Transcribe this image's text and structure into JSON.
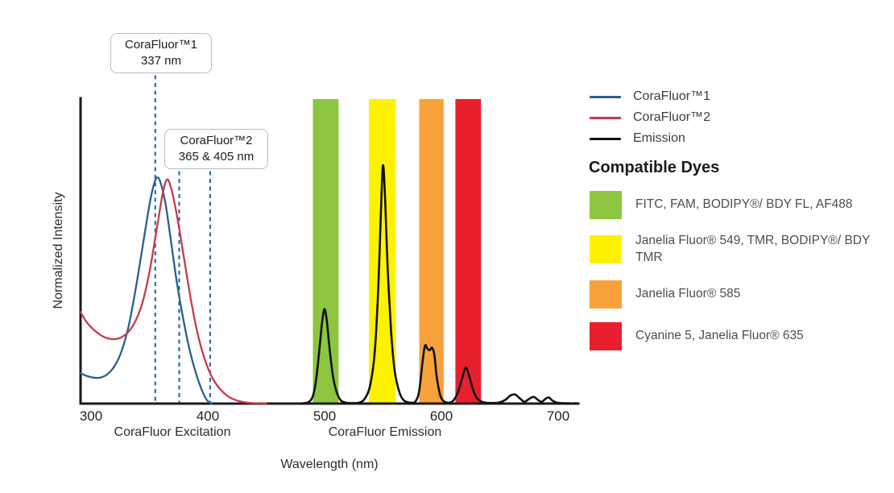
{
  "chart_data": {
    "type": "line",
    "title": "",
    "xlabel": "Wavelength (nm)",
    "ylabel": "Normalized Intensity",
    "xlim": [
      291,
      717
    ],
    "ylim": [
      0,
      1
    ],
    "grid": false,
    "x_ticks": [
      300,
      400,
      500,
      600,
      700
    ],
    "x_section_labels": [
      {
        "text": "CoraFluor Excitation",
        "center_nm": 370
      },
      {
        "text": "CoraFluor Emission",
        "center_nm": 552
      }
    ],
    "annotations": [
      {
        "title": "CoraFluor™1",
        "value": "337 nm",
        "lines_nm": [
          355
        ]
      },
      {
        "title": "CoraFluor™2",
        "value": "365 & 405 nm",
        "lines_nm": [
          375.5,
          402
        ]
      }
    ],
    "marker_color": "#2E6DA4",
    "axis_color": "#1a1a1a",
    "series": [
      {
        "name": "CoraFluor™1",
        "color": "#2B5F8D",
        "points": [
          [
            291,
            0.1
          ],
          [
            296,
            0.091
          ],
          [
            302,
            0.085
          ],
          [
            308,
            0.085
          ],
          [
            314,
            0.096
          ],
          [
            320,
            0.122
          ],
          [
            326,
            0.17
          ],
          [
            332,
            0.25
          ],
          [
            338,
            0.37
          ],
          [
            344,
            0.51
          ],
          [
            350,
            0.65
          ],
          [
            354,
            0.72
          ],
          [
            357,
            0.741
          ],
          [
            360,
            0.718
          ],
          [
            364,
            0.65
          ],
          [
            368,
            0.545
          ],
          [
            373,
            0.41
          ],
          [
            378,
            0.297
          ],
          [
            384,
            0.183
          ],
          [
            390,
            0.098
          ],
          [
            396,
            0.034
          ],
          [
            400,
            0.008
          ],
          [
            403,
            0.0
          ]
        ]
      },
      {
        "name": "CoraFluor™2",
        "color": "#C73A4D",
        "points": [
          [
            291,
            0.3
          ],
          [
            296,
            0.268
          ],
          [
            302,
            0.243
          ],
          [
            308,
            0.225
          ],
          [
            314,
            0.214
          ],
          [
            320,
            0.211
          ],
          [
            326,
            0.217
          ],
          [
            332,
            0.235
          ],
          [
            338,
            0.27
          ],
          [
            344,
            0.33
          ],
          [
            350,
            0.43
          ],
          [
            356,
            0.565
          ],
          [
            361,
            0.68
          ],
          [
            365,
            0.734
          ],
          [
            369,
            0.7
          ],
          [
            374,
            0.607
          ],
          [
            380,
            0.468
          ],
          [
            386,
            0.33
          ],
          [
            392,
            0.218
          ],
          [
            398,
            0.138
          ],
          [
            404,
            0.084
          ],
          [
            410,
            0.05
          ],
          [
            418,
            0.022
          ],
          [
            426,
            0.009
          ],
          [
            434,
            0.003
          ],
          [
            442,
            0.001
          ],
          [
            450,
            0.0
          ]
        ]
      },
      {
        "name": "Emission",
        "color": "#121212",
        "points": [
          [
            480,
            0.0
          ],
          [
            486,
            0.004
          ],
          [
            490,
            0.025
          ],
          [
            493,
            0.085
          ],
          [
            496,
            0.195
          ],
          [
            498,
            0.27
          ],
          [
            500,
            0.31
          ],
          [
            502,
            0.268
          ],
          [
            504,
            0.19
          ],
          [
            507,
            0.095
          ],
          [
            510,
            0.042
          ],
          [
            514,
            0.01
          ],
          [
            520,
            0.002
          ],
          [
            528,
            0.002
          ],
          [
            534,
            0.014
          ],
          [
            539,
            0.06
          ],
          [
            543,
            0.17
          ],
          [
            546,
            0.38
          ],
          [
            548,
            0.6
          ],
          [
            550,
            0.78
          ],
          [
            552,
            0.655
          ],
          [
            554,
            0.445
          ],
          [
            557,
            0.235
          ],
          [
            560,
            0.108
          ],
          [
            564,
            0.038
          ],
          [
            568,
            0.01
          ],
          [
            574,
            0.003
          ],
          [
            578,
            0.008
          ],
          [
            581,
            0.042
          ],
          [
            584,
            0.14
          ],
          [
            586,
            0.19
          ],
          [
            588,
            0.18
          ],
          [
            590,
            0.175
          ],
          [
            592,
            0.183
          ],
          [
            594,
            0.16
          ],
          [
            596,
            0.088
          ],
          [
            599,
            0.028
          ],
          [
            602,
            0.008
          ],
          [
            606,
            0.003
          ],
          [
            610,
            0.009
          ],
          [
            614,
            0.036
          ],
          [
            618,
            0.086
          ],
          [
            621,
            0.118
          ],
          [
            624,
            0.088
          ],
          [
            627,
            0.048
          ],
          [
            630,
            0.02
          ],
          [
            634,
            0.007
          ],
          [
            638,
            0.003
          ],
          [
            645,
            0.002
          ],
          [
            650,
            0.004
          ],
          [
            655,
            0.013
          ],
          [
            659,
            0.026
          ],
          [
            663,
            0.03
          ],
          [
            667,
            0.018
          ],
          [
            671,
            0.006
          ],
          [
            675,
            0.015
          ],
          [
            679,
            0.022
          ],
          [
            683,
            0.011
          ],
          [
            686,
            0.006
          ],
          [
            689,
            0.015
          ],
          [
            692,
            0.02
          ],
          [
            695,
            0.01
          ],
          [
            699,
            0.003
          ],
          [
            705,
            0.001
          ],
          [
            712,
            0.0
          ],
          [
            717,
            0.0
          ]
        ]
      }
    ],
    "bands": [
      {
        "name": "FITC, FAM, BODIPY®/ BDY FL, AF488",
        "color": "#8CC63F",
        "nm": [
          490,
          512
        ]
      },
      {
        "name": "Janelia Fluor® 549, TMR, BODIPY®/ BDY TMR",
        "color": "#FFF200",
        "nm": [
          538,
          561
        ]
      },
      {
        "name": "Janelia Fluor® 585",
        "color": "#F9A23C",
        "nm": [
          581,
          602
        ]
      },
      {
        "name": "Cyanine 5, Janelia Fluor® 635",
        "color": "#E8202E",
        "nm": [
          612,
          634
        ]
      }
    ]
  },
  "legend": {
    "items": [
      {
        "label": "CoraFluor™1",
        "color": "#2B5F8D"
      },
      {
        "label": "CoraFluor™2",
        "color": "#C73A4D"
      },
      {
        "label": "Emission",
        "color": "#121212"
      }
    ]
  },
  "dyes": {
    "heading": "Compatible Dyes",
    "items": [
      {
        "label": "FITC, FAM, BODIPY®/ BDY FL, AF488",
        "color": "#8CC63F"
      },
      {
        "label": "Janelia Fluor® 549, TMR, BODIPY®/ BDY TMR",
        "color": "#FFF200"
      },
      {
        "label": "Janelia Fluor® 585",
        "color": "#F9A23C"
      },
      {
        "label": "Cyanine 5, Janelia Fluor® 635",
        "color": "#E8202E"
      }
    ]
  }
}
